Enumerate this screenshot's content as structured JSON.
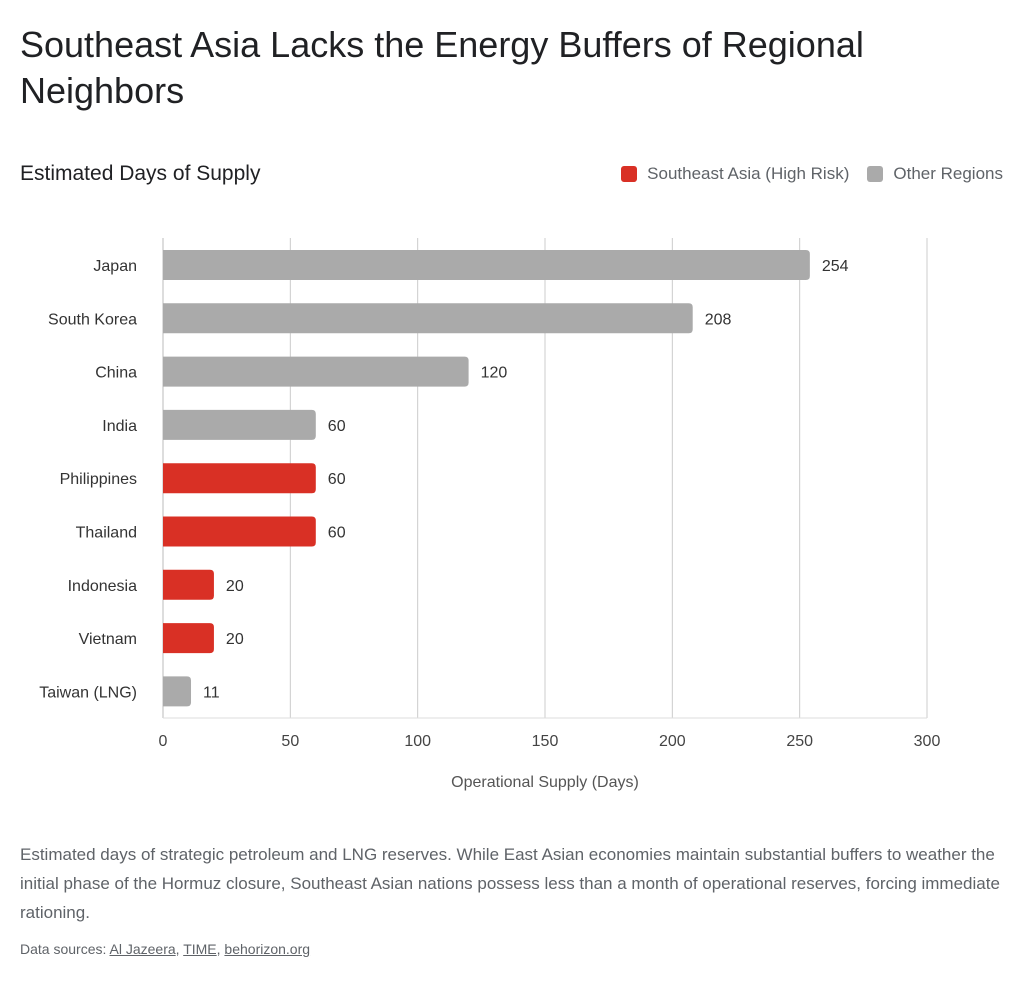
{
  "title": "Southeast Asia Lacks the Energy Buffers of Regional Neighbors",
  "caption": "Estimated days of strategic petroleum and LNG reserves. While East Asian economies maintain substantial buffers to weather the initial phase of the Hormuz closure, Southeast Asian nations possess less than a month of operational reserves, forcing immediate rationing.",
  "sources": {
    "label": "Data sources:",
    "links": [
      "Al Jazeera",
      "TIME",
      "behorizon.org"
    ]
  },
  "chart_data": {
    "type": "bar",
    "orientation": "horizontal",
    "title": "Estimated Days of Supply",
    "xlabel": "Operational Supply (Days)",
    "ylabel": "",
    "xlim": [
      0,
      300
    ],
    "xticks": [
      0,
      50,
      100,
      150,
      200,
      250,
      300
    ],
    "grid": true,
    "legend_position": "top-right",
    "legend": [
      {
        "name": "Southeast Asia (High Risk)",
        "color": "#d93025"
      },
      {
        "name": "Other Regions",
        "color": "#aaaaaa"
      }
    ],
    "categories": [
      "Japan",
      "South Korea",
      "China",
      "India",
      "Philippines",
      "Thailand",
      "Indonesia",
      "Vietnam",
      "Taiwan (LNG)"
    ],
    "values": [
      254,
      208,
      120,
      60,
      60,
      60,
      20,
      20,
      11
    ],
    "groups": [
      "Other Regions",
      "Other Regions",
      "Other Regions",
      "Other Regions",
      "Southeast Asia (High Risk)",
      "Southeast Asia (High Risk)",
      "Southeast Asia (High Risk)",
      "Southeast Asia (High Risk)",
      "Other Regions"
    ]
  }
}
